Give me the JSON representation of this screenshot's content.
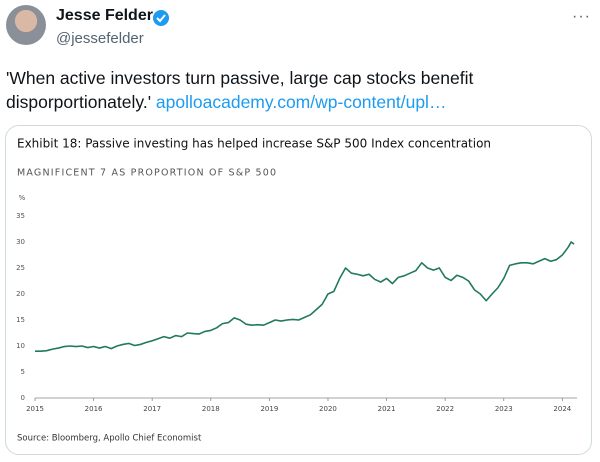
{
  "post": {
    "name": "Jesse Felder",
    "handle": "@jessefelder",
    "text": "'When active investors turn passive, large cap stocks benefit disporportionately.'",
    "link": "apolloacademy.com/wp-content/upl…"
  },
  "chart_data": {
    "type": "line",
    "title": "Exhibit 18: Passive investing has helped increase S&P 500 Index concentration",
    "subtitle": "MAGNIFICENT 7 AS PROPORTION OF S&P 500",
    "ylabel": "%",
    "source": "Source: Bloomberg, Apollo Chief Economist",
    "color": "#217a5b",
    "x": [
      2015.0,
      2015.1,
      2015.2,
      2015.3,
      2015.4,
      2015.5,
      2015.6,
      2015.7,
      2015.8,
      2015.9,
      2016.0,
      2016.1,
      2016.2,
      2016.3,
      2016.4,
      2016.5,
      2016.6,
      2016.7,
      2016.8,
      2016.9,
      2017.0,
      2017.1,
      2017.2,
      2017.3,
      2017.4,
      2017.5,
      2017.6,
      2017.7,
      2017.8,
      2017.9,
      2018.0,
      2018.1,
      2018.2,
      2018.3,
      2018.4,
      2018.5,
      2018.6,
      2018.7,
      2018.8,
      2018.9,
      2019.0,
      2019.1,
      2019.2,
      2019.3,
      2019.4,
      2019.5,
      2019.6,
      2019.7,
      2019.8,
      2019.9,
      2020.0,
      2020.1,
      2020.2,
      2020.3,
      2020.4,
      2020.5,
      2020.6,
      2020.7,
      2020.8,
      2020.9,
      2021.0,
      2021.1,
      2021.2,
      2021.3,
      2021.4,
      2021.5,
      2021.6,
      2021.7,
      2021.8,
      2021.9,
      2022.0,
      2022.1,
      2022.2,
      2022.3,
      2022.4,
      2022.5,
      2022.6,
      2022.7,
      2022.8,
      2022.9,
      2023.0,
      2023.1,
      2023.2,
      2023.3,
      2023.4,
      2023.5,
      2023.6,
      2023.7,
      2023.8,
      2023.9,
      2024.0,
      2024.1,
      2024.15,
      2024.2
    ],
    "values": [
      9,
      9,
      9.1,
      9.4,
      9.6,
      9.9,
      10,
      9.9,
      10,
      9.7,
      9.9,
      9.6,
      9.9,
      9.5,
      10,
      10.3,
      10.5,
      10.1,
      10.3,
      10.7,
      11,
      11.4,
      11.8,
      11.5,
      12,
      11.8,
      12.5,
      12.4,
      12.3,
      12.8,
      13,
      13.5,
      14.3,
      14.5,
      15.4,
      15,
      14.2,
      14,
      14.1,
      14,
      14.5,
      15,
      14.8,
      15,
      15.1,
      15,
      15.5,
      16,
      17,
      18,
      20,
      20.5,
      23,
      25,
      24,
      23.8,
      23.5,
      23.8,
      22.8,
      22.3,
      23,
      22,
      23.2,
      23.5,
      24,
      24.5,
      26,
      25,
      24.6,
      25,
      23.2,
      22.6,
      23.6,
      23.2,
      22.5,
      20.8,
      20,
      18.7,
      20,
      21.2,
      23,
      25.5,
      25.8,
      26,
      26,
      25.8,
      26.3,
      26.8,
      26.3,
      26.6,
      27.5,
      29,
      30,
      29.6
    ],
    "xlim": [
      2015,
      2024.25
    ],
    "xticks": [
      2015,
      2016,
      2017,
      2018,
      2019,
      2020,
      2021,
      2022,
      2023,
      2024
    ],
    "ylim": [
      0,
      35
    ],
    "yticks": [
      0,
      5,
      10,
      15,
      20,
      25,
      30,
      35
    ]
  }
}
